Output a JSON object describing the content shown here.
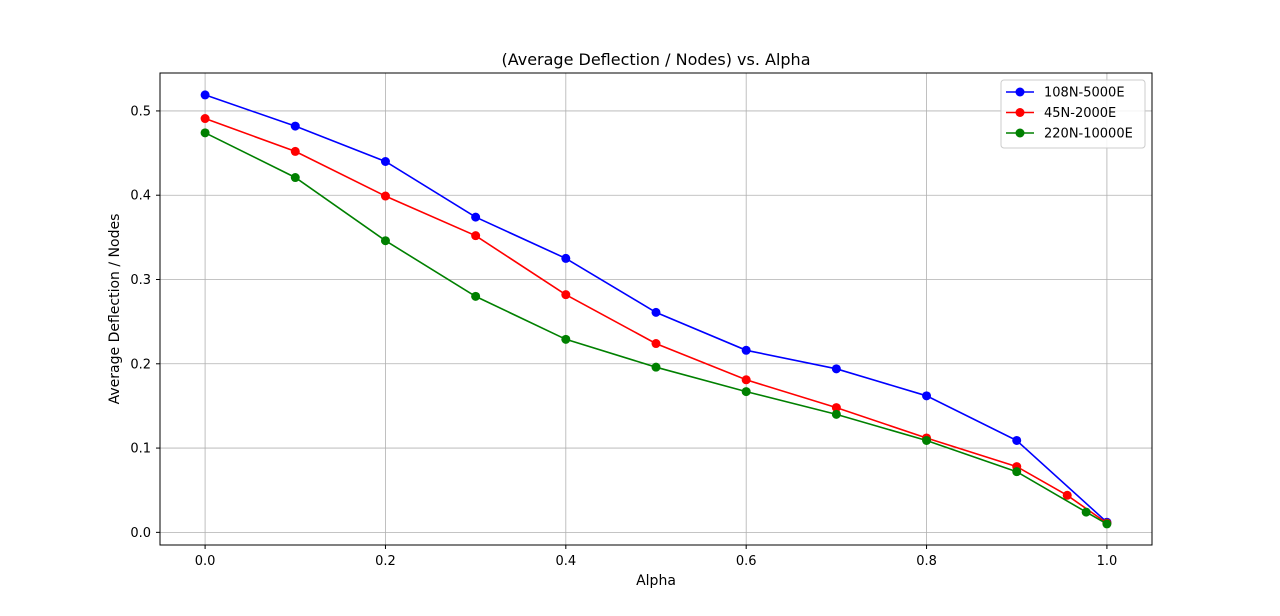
{
  "chart_data": {
    "type": "line",
    "title": "(Average Deflection / Nodes) vs. Alpha",
    "xlabel": "Alpha",
    "ylabel": "Average Deflection / Nodes",
    "xlim": [
      -0.05,
      1.05
    ],
    "ylim": [
      -0.015,
      0.545
    ],
    "xticks": [
      "0.0",
      "0.2",
      "0.4",
      "0.6",
      "0.8",
      "1.0"
    ],
    "yticks": [
      "0.0",
      "0.1",
      "0.2",
      "0.3",
      "0.4",
      "0.5"
    ],
    "grid": true,
    "legend_position": "top-right",
    "series": [
      {
        "name": "108N-5000E",
        "color": "#0000ff",
        "points": [
          [
            0.0,
            0.519
          ],
          [
            0.1,
            0.482
          ],
          [
            0.2,
            0.44
          ],
          [
            0.3,
            0.374
          ],
          [
            0.4,
            0.325
          ],
          [
            0.5,
            0.261
          ],
          [
            0.6,
            0.216
          ],
          [
            0.7,
            0.194
          ],
          [
            0.8,
            0.162
          ],
          [
            0.9,
            0.109
          ],
          [
            1.0,
            0.012
          ]
        ]
      },
      {
        "name": "45N-2000E",
        "color": "#ff0000",
        "points": [
          [
            0.0,
            0.491
          ],
          [
            0.1,
            0.452
          ],
          [
            0.2,
            0.399
          ],
          [
            0.3,
            0.352
          ],
          [
            0.4,
            0.282
          ],
          [
            0.5,
            0.224
          ],
          [
            0.6,
            0.181
          ],
          [
            0.7,
            0.148
          ],
          [
            0.8,
            0.112
          ],
          [
            0.9,
            0.078
          ],
          [
            0.956,
            0.044
          ],
          [
            1.0,
            0.011
          ]
        ]
      },
      {
        "name": "220N-10000E",
        "color": "#008000",
        "points": [
          [
            0.0,
            0.474
          ],
          [
            0.1,
            0.421
          ],
          [
            0.2,
            0.346
          ],
          [
            0.3,
            0.28
          ],
          [
            0.4,
            0.229
          ],
          [
            0.5,
            0.196
          ],
          [
            0.6,
            0.167
          ],
          [
            0.7,
            0.14
          ],
          [
            0.8,
            0.109
          ],
          [
            0.9,
            0.072
          ],
          [
            0.977,
            0.024
          ],
          [
            1.0,
            0.01
          ]
        ]
      }
    ]
  }
}
